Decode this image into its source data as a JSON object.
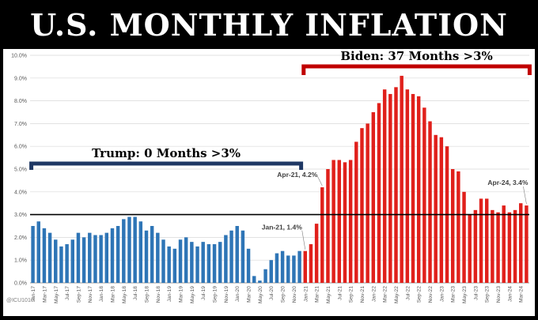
{
  "title": "U.S. MONTHLY INFLATION",
  "credit": "@ICU1010",
  "colors": {
    "trump_bar": "#2e75b6",
    "biden_bar": "#e0201b",
    "trump_bracket": "#1f3864",
    "biden_bracket": "#c00000",
    "reference_line": "#000000",
    "grid": "#d9d9d9"
  },
  "chart_data": {
    "type": "bar",
    "title": "U.S. MONTHLY INFLATION",
    "xlabel": "",
    "ylabel": "",
    "ylim": [
      0,
      10
    ],
    "y_ticks": [
      "0.0%",
      "1.0%",
      "2.0%",
      "3.0%",
      "4.0%",
      "5.0%",
      "6.0%",
      "7.0%",
      "8.0%",
      "9.0%",
      "10.0%"
    ],
    "grid": true,
    "reference_line": 3.0,
    "x_tick_labels": [
      "Jan-17",
      "Mar-17",
      "May-17",
      "Jul-17",
      "Sep-17",
      "Nov-17",
      "Jan-18",
      "Mar-18",
      "May-18",
      "Jul-18",
      "Sep-18",
      "Nov-18",
      "Jan-19",
      "Mar-19",
      "May-19",
      "Jul-19",
      "Sep-19",
      "Nov-19",
      "Jan-20",
      "Mar-20",
      "May-20",
      "Jul-20",
      "Sep-20",
      "Nov-20",
      "Jan-21",
      "Mar-21",
      "May-21",
      "Jul-21",
      "Sep-21",
      "Nov-21",
      "Jan-22",
      "Mar-22",
      "May-22",
      "Jul-22",
      "Sep-22",
      "Nov-22",
      "Jan-23",
      "Mar-23",
      "May-23",
      "Jul-23",
      "Sep-23",
      "Nov-23",
      "Jan-24",
      "Mar-24"
    ],
    "series": [
      {
        "name": "Trump",
        "values": [
          2.5,
          2.7,
          2.4,
          2.2,
          1.9,
          1.6,
          1.7,
          1.9,
          2.2,
          2.0,
          2.2,
          2.1,
          2.1,
          2.2,
          2.4,
          2.5,
          2.8,
          2.9,
          2.9,
          2.7,
          2.3,
          2.5,
          2.2,
          1.9,
          1.6,
          1.5,
          1.9,
          2.0,
          1.8,
          1.6,
          1.8,
          1.7,
          1.7,
          1.8,
          2.1,
          2.3,
          2.5,
          2.3,
          1.5,
          0.3,
          0.1,
          0.6,
          1.0,
          1.3,
          1.4,
          1.2,
          1.2,
          1.4
        ]
      },
      {
        "name": "Biden",
        "values": [
          1.4,
          1.7,
          2.6,
          4.2,
          5.0,
          5.4,
          5.4,
          5.3,
          5.4,
          6.2,
          6.8,
          7.0,
          7.5,
          7.9,
          8.5,
          8.3,
          8.6,
          9.1,
          8.5,
          8.3,
          8.2,
          7.7,
          7.1,
          6.5,
          6.4,
          6.0,
          5.0,
          4.9,
          4.0,
          3.0,
          3.2,
          3.7,
          3.7,
          3.2,
          3.1,
          3.4,
          3.1,
          3.2,
          3.5,
          3.4
        ]
      }
    ],
    "annotations": [
      {
        "text": "Trump: 0 Months >3%"
      },
      {
        "text": "Biden: 37 Months >3%"
      },
      {
        "text": "Apr-21, 4.2%",
        "x": "Apr-21",
        "y": 4.2
      },
      {
        "text": "Jan-21, 1.4%",
        "x": "Jan-21",
        "y": 1.4
      },
      {
        "text": "Apr-24, 3.4%",
        "x": "Apr-24",
        "y": 3.4
      }
    ]
  }
}
